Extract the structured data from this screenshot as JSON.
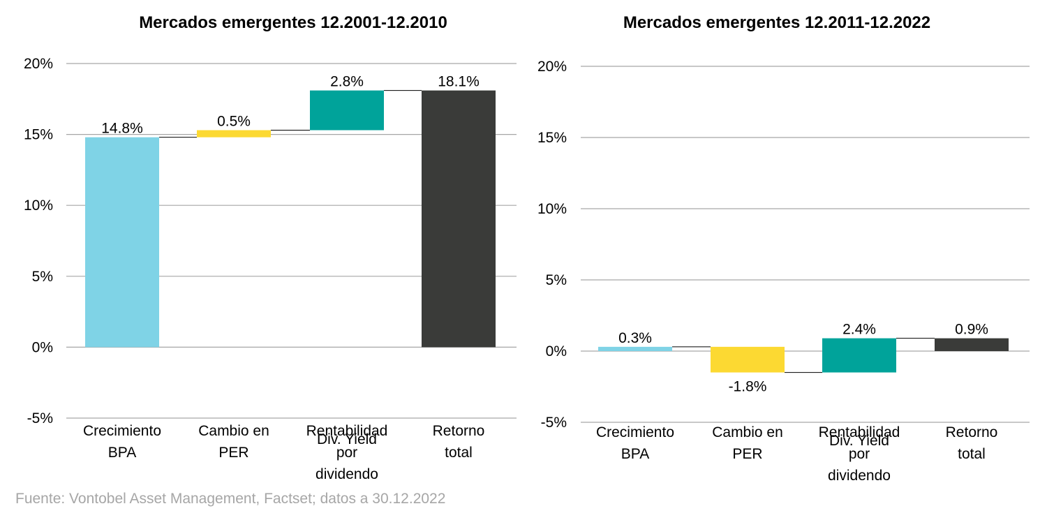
{
  "source": "Fuente: Vontobel Asset Management, Factset; datos a 30.12.2022",
  "colors": {
    "eps_growth": "#7fd3e6",
    "per_change": "#fcd932",
    "dividend_yield": "#00a39a",
    "total_return": "#3a3b39",
    "grid": "#a6a6a6"
  },
  "chart_data": [
    {
      "type": "bar",
      "subtype": "waterfall",
      "title": "Mercados emergentes 12.2001-12.2010",
      "categories": [
        "Crecimiento BPA",
        "Cambio en PER",
        "Rentabilidad por dividendo",
        "Retorno total"
      ],
      "category_lines": [
        [
          "Crecimiento",
          "BPA"
        ],
        [
          "Cambio en",
          "PER"
        ],
        [
          "Rentabilidad",
          "por",
          "dividendo"
        ],
        [
          "Retorno",
          "total"
        ]
      ],
      "overlapping_label_text": "Div. Yield",
      "values": [
        14.8,
        0.5,
        2.8,
        18.1
      ],
      "bar_bases": [
        0,
        14.8,
        15.3,
        0
      ],
      "data_labels": [
        "14.8%",
        "0.5%",
        "2.8%",
        "18.1%"
      ],
      "ylim": [
        -5,
        20
      ],
      "yticks": [
        -5,
        0,
        5,
        10,
        15,
        20
      ],
      "ytick_labels": [
        "-5%",
        "0%",
        "5%",
        "10%",
        "15%",
        "20%"
      ],
      "grid": true,
      "legend": "none"
    },
    {
      "type": "bar",
      "subtype": "waterfall",
      "title": "Mercados emergentes 12.2011-12.2022",
      "categories": [
        "Crecimiento BPA",
        "Cambio en PER",
        "Rentabilidad por dividendo",
        "Retorno total"
      ],
      "category_lines": [
        [
          "Crecimiento",
          "BPA"
        ],
        [
          "Cambio en",
          "PER"
        ],
        [
          "Rentabilidad",
          "por",
          "dividendo"
        ],
        [
          "Retorno",
          "total"
        ]
      ],
      "overlapping_label_text": "Div. Yield",
      "values": [
        0.3,
        -1.8,
        2.4,
        0.9
      ],
      "bar_bases": [
        0,
        0.3,
        -1.5,
        0
      ],
      "data_labels": [
        "0.3%",
        "-1.8%",
        "2.4%",
        "0.9%"
      ],
      "ylim": [
        -5,
        20
      ],
      "yticks": [
        -5,
        0,
        5,
        10,
        15,
        20
      ],
      "ytick_labels": [
        "-5%",
        "0%",
        "5%",
        "10%",
        "15%",
        "20%"
      ],
      "grid": true,
      "legend": "none"
    }
  ]
}
